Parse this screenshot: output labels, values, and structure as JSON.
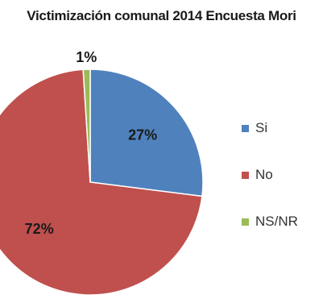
{
  "chart_data": {
    "type": "pie",
    "title": "Victimización comunal 2014 Encuesta Mori",
    "categories": [
      "Si",
      "No",
      "NS/NR"
    ],
    "values": [
      27,
      72,
      1
    ],
    "labels": [
      "27%",
      "72%",
      "1%"
    ],
    "colors": [
      "#4f81bd",
      "#c0504d",
      "#9bbb59"
    ],
    "legend_position": "right"
  }
}
